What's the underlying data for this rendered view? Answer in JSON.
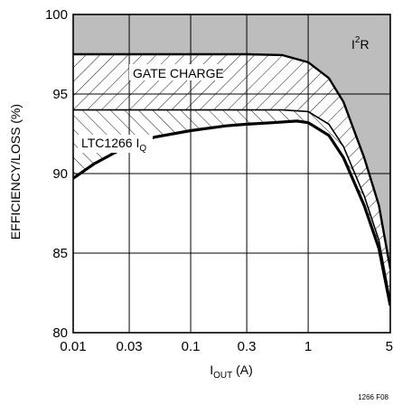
{
  "chart_data": {
    "type": "area",
    "xlabel_main": "I",
    "xlabel_sub": "OUT",
    "xlabel_unit": " (A)",
    "ylabel": "EFFICIENCY/LOSS (%)",
    "x_scale": "log",
    "xlim": [
      0.01,
      5
    ],
    "ylim": [
      80,
      100
    ],
    "x_tick_values": [
      0.01,
      0.03,
      0.1,
      0.3,
      1,
      5
    ],
    "x_tick_labels": [
      "0.01",
      "0.03",
      "0.1",
      "0.3",
      "1",
      "5"
    ],
    "y_tick_values": [
      80,
      85,
      90,
      95,
      100
    ],
    "y_tick_labels": [
      "80",
      "85",
      "90",
      "95",
      "100"
    ],
    "grid": true,
    "figure_id": "1266 F08",
    "annotations": {
      "i2r_main": "I",
      "i2r_sup": "2",
      "i2r_tail": "R",
      "gate_charge": "GATE CHARGE",
      "iq_main": "LTC1266 I",
      "iq_sub": "Q"
    },
    "series": [
      {
        "name": "I2R",
        "x": [
          0.01,
          0.03,
          0.1,
          0.3,
          0.6,
          1.0,
          1.5,
          2.0,
          3.0,
          4.0,
          5.0
        ],
        "values": [
          97.5,
          97.5,
          97.5,
          97.5,
          97.45,
          97.0,
          96.0,
          94.5,
          91.0,
          88.0,
          84.0
        ]
      },
      {
        "name": "GATE CHARGE",
        "x": [
          0.01,
          0.02,
          0.04,
          0.1,
          0.3,
          0.6,
          1.0,
          1.5,
          2.0,
          3.0,
          4.0,
          5.0
        ],
        "values": [
          94.0,
          94.0,
          94.0,
          94.0,
          94.0,
          94.0,
          93.9,
          93.1,
          91.7,
          88.6,
          85.8,
          82.0
        ]
      },
      {
        "name": "LTC1266 IQ",
        "x": [
          0.01,
          0.015,
          0.02,
          0.03,
          0.05,
          0.1,
          0.2,
          0.3,
          0.5,
          0.8,
          1.0,
          1.5,
          2.0,
          3.0,
          4.0,
          5.0
        ],
        "values": [
          89.7,
          90.6,
          91.1,
          91.8,
          92.3,
          92.7,
          93.0,
          93.1,
          93.2,
          93.3,
          93.2,
          92.4,
          91.0,
          88.0,
          85.3,
          81.7
        ]
      }
    ]
  }
}
